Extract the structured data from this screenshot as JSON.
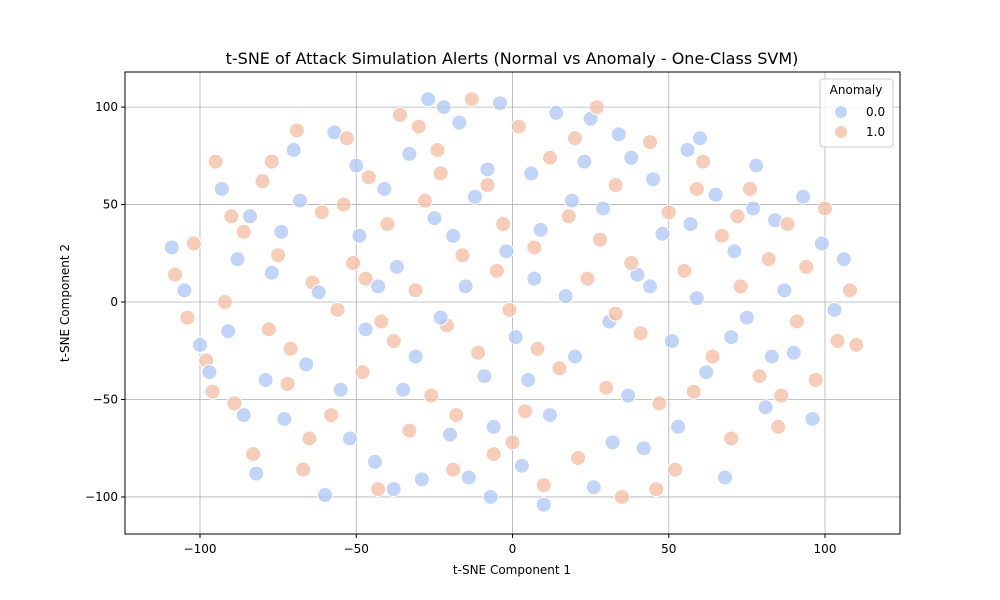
{
  "chart_data": {
    "type": "scatter",
    "title": "t-SNE of Attack Simulation Alerts (Normal vs Anomaly - One-Class SVM)",
    "xlabel": "t-SNE Component 1",
    "ylabel": "t-SNE Component 2",
    "xlim": [
      -124,
      124
    ],
    "ylim": [
      -119,
      118
    ],
    "xticks": [
      -100,
      -50,
      0,
      50,
      100
    ],
    "yticks": [
      -100,
      -50,
      0,
      50,
      100
    ],
    "xtick_labels": [
      "−100",
      "−50",
      "0",
      "50",
      "100"
    ],
    "ytick_labels": [
      "−100",
      "−50",
      "0",
      "50",
      "100"
    ],
    "grid": true,
    "legend": {
      "title": "Anomaly",
      "placement": "top-right",
      "entries": [
        "0.0",
        "1.0"
      ]
    },
    "colors": {
      "0.0": "#aec7f7",
      "1.0": "#f4bba0"
    },
    "series": [
      {
        "name": "0.0",
        "points": [
          [
            -109,
            28
          ],
          [
            -105,
            6
          ],
          [
            -97,
            -36
          ],
          [
            -91,
            -15
          ],
          [
            -84,
            44
          ],
          [
            -82,
            -88
          ],
          [
            -77,
            15
          ],
          [
            -73,
            -60
          ],
          [
            -70,
            78
          ],
          [
            -66,
            -32
          ],
          [
            -62,
            5
          ],
          [
            -60,
            -99
          ],
          [
            -57,
            87
          ],
          [
            -52,
            -70
          ],
          [
            -49,
            34
          ],
          [
            -47,
            -14
          ],
          [
            -44,
            -82
          ],
          [
            -41,
            58
          ],
          [
            -37,
            18
          ],
          [
            -35,
            -45
          ],
          [
            -33,
            76
          ],
          [
            -29,
            -91
          ],
          [
            -27,
            104
          ],
          [
            -25,
            43
          ],
          [
            -23,
            -8
          ],
          [
            -20,
            -68
          ],
          [
            -17,
            92
          ],
          [
            -15,
            8
          ],
          [
            -12,
            54
          ],
          [
            -9,
            -38
          ],
          [
            -7,
            -100
          ],
          [
            -4,
            102
          ],
          [
            -2,
            26
          ],
          [
            1,
            -18
          ],
          [
            3,
            -84
          ],
          [
            6,
            66
          ],
          [
            9,
            37
          ],
          [
            12,
            -58
          ],
          [
            14,
            97
          ],
          [
            17,
            3
          ],
          [
            20,
            -28
          ],
          [
            23,
            72
          ],
          [
            26,
            -95
          ],
          [
            29,
            48
          ],
          [
            31,
            -10
          ],
          [
            34,
            86
          ],
          [
            37,
            -48
          ],
          [
            40,
            14
          ],
          [
            42,
            -75
          ],
          [
            45,
            63
          ],
          [
            48,
            35
          ],
          [
            51,
            -20
          ],
          [
            53,
            -64
          ],
          [
            56,
            78
          ],
          [
            59,
            2
          ],
          [
            62,
            -36
          ],
          [
            65,
            55
          ],
          [
            68,
            -90
          ],
          [
            71,
            26
          ],
          [
            75,
            -8
          ],
          [
            78,
            70
          ],
          [
            81,
            -54
          ],
          [
            84,
            42
          ],
          [
            87,
            6
          ],
          [
            90,
            -26
          ],
          [
            93,
            54
          ],
          [
            96,
            -60
          ],
          [
            99,
            30
          ],
          [
            103,
            -4
          ],
          [
            106,
            22
          ],
          [
            -93,
            58
          ],
          [
            -88,
            22
          ],
          [
            -79,
            -40
          ],
          [
            -68,
            52
          ],
          [
            -55,
            -45
          ],
          [
            -43,
            8
          ],
          [
            -31,
            -28
          ],
          [
            -19,
            34
          ],
          [
            -6,
            -64
          ],
          [
            7,
            12
          ],
          [
            19,
            52
          ],
          [
            32,
            -72
          ],
          [
            44,
            8
          ],
          [
            57,
            40
          ],
          [
            70,
            -18
          ],
          [
            83,
            -28
          ],
          [
            -100,
            -22
          ],
          [
            -86,
            -58
          ],
          [
            -74,
            36
          ],
          [
            -50,
            70
          ],
          [
            -38,
            -96
          ],
          [
            -14,
            -90
          ],
          [
            10,
            -104
          ],
          [
            25,
            94
          ],
          [
            38,
            74
          ],
          [
            60,
            84
          ],
          [
            77,
            48
          ],
          [
            -22,
            100
          ],
          [
            -8,
            68
          ],
          [
            5,
            -40
          ]
        ]
      },
      {
        "name": "1.0",
        "points": [
          [
            -108,
            14
          ],
          [
            -104,
            -8
          ],
          [
            -102,
            30
          ],
          [
            -98,
            -30
          ],
          [
            -95,
            72
          ],
          [
            -92,
            0
          ],
          [
            -89,
            -52
          ],
          [
            -86,
            36
          ],
          [
            -83,
            -78
          ],
          [
            -80,
            62
          ],
          [
            -78,
            -14
          ],
          [
            -75,
            24
          ],
          [
            -72,
            -42
          ],
          [
            -69,
            88
          ],
          [
            -67,
            -86
          ],
          [
            -64,
            10
          ],
          [
            -61,
            46
          ],
          [
            -58,
            -58
          ],
          [
            -56,
            -4
          ],
          [
            -53,
            84
          ],
          [
            -51,
            20
          ],
          [
            -48,
            -36
          ],
          [
            -46,
            64
          ],
          [
            -43,
            -96
          ],
          [
            -40,
            40
          ],
          [
            -38,
            -20
          ],
          [
            -36,
            96
          ],
          [
            -33,
            -66
          ],
          [
            -31,
            6
          ],
          [
            -28,
            52
          ],
          [
            -26,
            -48
          ],
          [
            -24,
            78
          ],
          [
            -21,
            -12
          ],
          [
            -19,
            -86
          ],
          [
            -16,
            24
          ],
          [
            -13,
            104
          ],
          [
            -11,
            -26
          ],
          [
            -8,
            60
          ],
          [
            -6,
            -78
          ],
          [
            -3,
            40
          ],
          [
            -1,
            -4
          ],
          [
            2,
            90
          ],
          [
            4,
            -56
          ],
          [
            7,
            28
          ],
          [
            10,
            -94
          ],
          [
            12,
            74
          ],
          [
            15,
            -34
          ],
          [
            18,
            44
          ],
          [
            21,
            -80
          ],
          [
            24,
            12
          ],
          [
            27,
            100
          ],
          [
            30,
            -44
          ],
          [
            33,
            60
          ],
          [
            35,
            -100
          ],
          [
            38,
            20
          ],
          [
            41,
            -16
          ],
          [
            44,
            82
          ],
          [
            47,
            -52
          ],
          [
            50,
            46
          ],
          [
            52,
            -86
          ],
          [
            55,
            16
          ],
          [
            58,
            -46
          ],
          [
            61,
            72
          ],
          [
            64,
            -28
          ],
          [
            67,
            34
          ],
          [
            70,
            -70
          ],
          [
            73,
            8
          ],
          [
            76,
            58
          ],
          [
            79,
            -38
          ],
          [
            82,
            22
          ],
          [
            85,
            -64
          ],
          [
            88,
            40
          ],
          [
            91,
            -10
          ],
          [
            94,
            18
          ],
          [
            97,
            -40
          ],
          [
            100,
            48
          ],
          [
            104,
            -20
          ],
          [
            108,
            6
          ],
          [
            110,
            -22
          ],
          [
            -90,
            44
          ],
          [
            -77,
            72
          ],
          [
            -65,
            -70
          ],
          [
            -54,
            50
          ],
          [
            -42,
            -10
          ],
          [
            -30,
            90
          ],
          [
            -18,
            -58
          ],
          [
            -5,
            16
          ],
          [
            8,
            -24
          ],
          [
            20,
            84
          ],
          [
            33,
            -6
          ],
          [
            46,
            -96
          ],
          [
            59,
            58
          ],
          [
            72,
            44
          ],
          [
            86,
            -48
          ],
          [
            -96,
            -46
          ],
          [
            -71,
            -24
          ],
          [
            -47,
            12
          ],
          [
            -23,
            66
          ],
          [
            0,
            -72
          ],
          [
            28,
            32
          ]
        ]
      }
    ]
  }
}
